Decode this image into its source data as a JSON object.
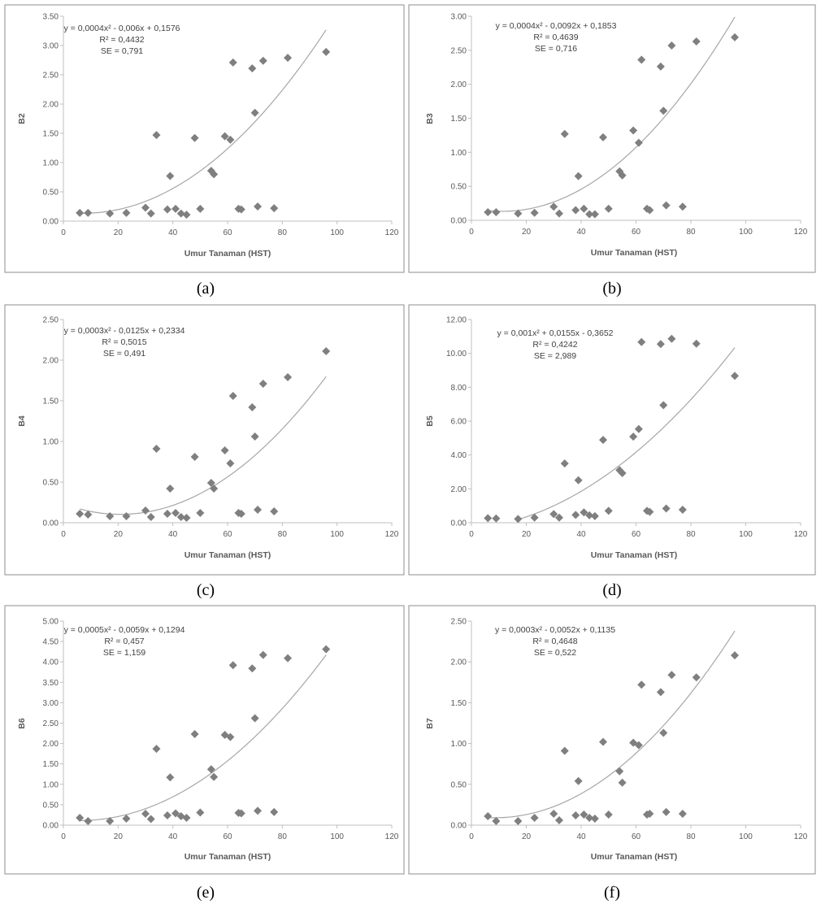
{
  "chart_data": [
    {
      "type": "scatter",
      "panel": "(a)",
      "xlabel": "Umur Tanaman (HST)",
      "ylabel": "B2",
      "xlim": [
        0,
        120
      ],
      "ylim": [
        0,
        3.5
      ],
      "x_ticks": [
        "0",
        "20",
        "40",
        "60",
        "80",
        "100",
        "120"
      ],
      "y_ticks": [
        "0.00",
        "0.50",
        "1.00",
        "1.50",
        "2.00",
        "2.50",
        "3.00",
        "3.50"
      ],
      "equation": "y = 0,0004x² - 0,006x + 0,1576",
      "r2": "R² = 0,4432",
      "se": "SE = 0,791",
      "trend": {
        "a": 0.0004,
        "b": -0.006,
        "c": 0.1576,
        "x_range": [
          6,
          96
        ]
      },
      "points": [
        [
          6,
          0.14
        ],
        [
          9,
          0.14
        ],
        [
          17,
          0.13
        ],
        [
          23,
          0.14
        ],
        [
          30,
          0.23
        ],
        [
          32,
          0.13
        ],
        [
          34,
          1.47
        ],
        [
          38,
          0.2
        ],
        [
          39,
          0.77
        ],
        [
          41,
          0.21
        ],
        [
          43,
          0.13
        ],
        [
          45,
          0.11
        ],
        [
          48,
          1.42
        ],
        [
          50,
          0.21
        ],
        [
          54,
          0.86
        ],
        [
          55,
          0.8
        ],
        [
          59,
          1.45
        ],
        [
          61,
          1.39
        ],
        [
          62,
          2.71
        ],
        [
          64,
          0.21
        ],
        [
          65,
          0.2
        ],
        [
          69,
          2.61
        ],
        [
          70,
          1.85
        ],
        [
          71,
          0.25
        ],
        [
          73,
          2.74
        ],
        [
          77,
          0.22
        ],
        [
          82,
          2.79
        ],
        [
          96,
          2.89
        ]
      ],
      "grid": false,
      "legend": "none"
    },
    {
      "type": "scatter",
      "panel": "(b)",
      "xlabel": "Umur Tanaman (HST)",
      "ylabel": "B3",
      "xlim": [
        0,
        120
      ],
      "ylim": [
        0,
        3.0
      ],
      "x_ticks": [
        "0",
        "20",
        "40",
        "60",
        "80",
        "100",
        "120"
      ],
      "y_ticks": [
        "0.00",
        "0.50",
        "1.00",
        "1.50",
        "2.00",
        "2.50",
        "3.00"
      ],
      "equation": "y = 0,0004x² - 0,0092x + 0,1853",
      "r2": "R² = 0,4639",
      "se": "SE = 0,716",
      "trend": {
        "a": 0.0004,
        "b": -0.0092,
        "c": 0.1853,
        "x_range": [
          6,
          96
        ]
      },
      "points": [
        [
          6,
          0.12
        ],
        [
          9,
          0.12
        ],
        [
          17,
          0.1
        ],
        [
          23,
          0.11
        ],
        [
          30,
          0.2
        ],
        [
          32,
          0.1
        ],
        [
          34,
          1.27
        ],
        [
          38,
          0.15
        ],
        [
          39,
          0.65
        ],
        [
          41,
          0.17
        ],
        [
          43,
          0.09
        ],
        [
          45,
          0.09
        ],
        [
          48,
          1.22
        ],
        [
          50,
          0.17
        ],
        [
          54,
          0.72
        ],
        [
          55,
          0.66
        ],
        [
          59,
          1.32
        ],
        [
          61,
          1.14
        ],
        [
          62,
          2.36
        ],
        [
          64,
          0.17
        ],
        [
          65,
          0.15
        ],
        [
          69,
          2.26
        ],
        [
          70,
          1.61
        ],
        [
          71,
          0.22
        ],
        [
          73,
          2.57
        ],
        [
          77,
          0.2
        ],
        [
          82,
          2.63
        ],
        [
          96,
          2.69
        ]
      ],
      "grid": false,
      "legend": "none"
    },
    {
      "type": "scatter",
      "panel": "(c)",
      "xlabel": "Umur Tanaman (HST)",
      "ylabel": "B4",
      "xlim": [
        0,
        120
      ],
      "ylim": [
        0,
        2.5
      ],
      "x_ticks": [
        "0",
        "20",
        "40",
        "60",
        "80",
        "100",
        "120"
      ],
      "y_ticks": [
        "0.00",
        "0.50",
        "1.00",
        "1.50",
        "2.00",
        "2.50"
      ],
      "equation": "y = 0,0003x² - 0,0125x + 0,2334",
      "r2": "R² = 0,5015",
      "se": "SE = 0,491",
      "trend": {
        "a": 0.0003,
        "b": -0.0125,
        "c": 0.2334,
        "x_range": [
          6,
          96
        ]
      },
      "points": [
        [
          6,
          0.11
        ],
        [
          9,
          0.1
        ],
        [
          17,
          0.08
        ],
        [
          23,
          0.08
        ],
        [
          30,
          0.15
        ],
        [
          32,
          0.07
        ],
        [
          34,
          0.91
        ],
        [
          38,
          0.11
        ],
        [
          39,
          0.42
        ],
        [
          41,
          0.12
        ],
        [
          43,
          0.07
        ],
        [
          45,
          0.06
        ],
        [
          48,
          0.81
        ],
        [
          50,
          0.12
        ],
        [
          54,
          0.49
        ],
        [
          55,
          0.42
        ],
        [
          59,
          0.89
        ],
        [
          61,
          0.73
        ],
        [
          62,
          1.56
        ],
        [
          64,
          0.12
        ],
        [
          65,
          0.11
        ],
        [
          69,
          1.42
        ],
        [
          70,
          1.06
        ],
        [
          71,
          0.16
        ],
        [
          73,
          1.71
        ],
        [
          77,
          0.14
        ],
        [
          82,
          1.79
        ],
        [
          96,
          2.11
        ]
      ],
      "grid": false,
      "legend": "none"
    },
    {
      "type": "scatter",
      "panel": "(d)",
      "xlabel": "Umur Tanaman (HST)",
      "ylabel": "B5",
      "xlim": [
        0,
        120
      ],
      "ylim": [
        0,
        12
      ],
      "x_ticks": [
        "0",
        "20",
        "40",
        "60",
        "80",
        "100",
        "120"
      ],
      "y_ticks": [
        "0.00",
        "2.00",
        "4.00",
        "6.00",
        "8.00",
        "10.00",
        "12.00"
      ],
      "equation": "y = 0,001x² + 0,0155x - 0,3652",
      "r2": "R² = 0,4242",
      "se": "SE = 2,989",
      "trend": {
        "a": 0.001,
        "b": 0.0155,
        "c": -0.3652,
        "x_range": [
          17,
          96
        ]
      },
      "points": [
        [
          6,
          0.27
        ],
        [
          9,
          0.25
        ],
        [
          17,
          0.22
        ],
        [
          23,
          0.3
        ],
        [
          30,
          0.51
        ],
        [
          32,
          0.3
        ],
        [
          34,
          3.5
        ],
        [
          38,
          0.46
        ],
        [
          39,
          2.51
        ],
        [
          41,
          0.61
        ],
        [
          43,
          0.44
        ],
        [
          45,
          0.39
        ],
        [
          48,
          4.89
        ],
        [
          50,
          0.7
        ],
        [
          54,
          3.1
        ],
        [
          55,
          2.93
        ],
        [
          59,
          5.08
        ],
        [
          61,
          5.53
        ],
        [
          62,
          10.67
        ],
        [
          64,
          0.7
        ],
        [
          65,
          0.64
        ],
        [
          69,
          10.55
        ],
        [
          70,
          6.94
        ],
        [
          71,
          0.84
        ],
        [
          73,
          10.86
        ],
        [
          77,
          0.77
        ],
        [
          82,
          10.57
        ],
        [
          96,
          8.67
        ]
      ],
      "grid": false,
      "legend": "none"
    },
    {
      "type": "scatter",
      "panel": "(e)",
      "xlabel": "Umur Tanaman (HST)",
      "ylabel": "B6",
      "xlim": [
        0,
        120
      ],
      "ylim": [
        0,
        5.0
      ],
      "x_ticks": [
        "0",
        "20",
        "40",
        "60",
        "80",
        "100",
        "120"
      ],
      "y_ticks": [
        "0.00",
        "0.50",
        "1.00",
        "1.50",
        "2.00",
        "2.50",
        "3.00",
        "3.50",
        "4.00",
        "4.50",
        "5.00"
      ],
      "equation": "y = 0,0005x² - 0,0059x + 0,1294",
      "r2": "R² = 0,457",
      "se": "SE = 1,159",
      "trend": {
        "a": 0.0005,
        "b": -0.0059,
        "c": 0.1294,
        "x_range": [
          6,
          96
        ]
      },
      "points": [
        [
          6,
          0.18
        ],
        [
          9,
          0.1
        ],
        [
          17,
          0.1
        ],
        [
          23,
          0.16
        ],
        [
          30,
          0.28
        ],
        [
          32,
          0.15
        ],
        [
          34,
          1.87
        ],
        [
          38,
          0.24
        ],
        [
          39,
          1.17
        ],
        [
          41,
          0.29
        ],
        [
          43,
          0.22
        ],
        [
          45,
          0.18
        ],
        [
          48,
          2.23
        ],
        [
          50,
          0.31
        ],
        [
          54,
          1.37
        ],
        [
          55,
          1.18
        ],
        [
          59,
          2.21
        ],
        [
          61,
          2.16
        ],
        [
          62,
          3.92
        ],
        [
          64,
          0.3
        ],
        [
          65,
          0.29
        ],
        [
          69,
          3.84
        ],
        [
          70,
          2.62
        ],
        [
          71,
          0.35
        ],
        [
          73,
          4.17
        ],
        [
          77,
          0.32
        ],
        [
          82,
          4.09
        ],
        [
          96,
          4.31
        ]
      ],
      "grid": false,
      "legend": "none"
    },
    {
      "type": "scatter",
      "panel": "(f)",
      "xlabel": "Umur Tanaman (HST)",
      "ylabel": "B7",
      "xlim": [
        0,
        120
      ],
      "ylim": [
        0,
        2.5
      ],
      "x_ticks": [
        "0",
        "20",
        "40",
        "60",
        "80",
        "100",
        "120"
      ],
      "y_ticks": [
        "0.00",
        "0.50",
        "1.00",
        "1.50",
        "2.00",
        "2.50"
      ],
      "equation": "y = 0,0003x² - 0,0052x + 0,1135",
      "r2": "R² = 0,4648",
      "se": "SE = 0,522",
      "trend": {
        "a": 0.0003,
        "b": -0.0052,
        "c": 0.1135,
        "x_range": [
          6,
          96
        ]
      },
      "points": [
        [
          6,
          0.11
        ],
        [
          9,
          0.05
        ],
        [
          17,
          0.05
        ],
        [
          23,
          0.09
        ],
        [
          30,
          0.14
        ],
        [
          32,
          0.06
        ],
        [
          34,
          0.91
        ],
        [
          38,
          0.12
        ],
        [
          39,
          0.54
        ],
        [
          41,
          0.13
        ],
        [
          43,
          0.09
        ],
        [
          45,
          0.08
        ],
        [
          48,
          1.02
        ],
        [
          50,
          0.13
        ],
        [
          54,
          0.66
        ],
        [
          55,
          0.52
        ],
        [
          59,
          1.01
        ],
        [
          61,
          0.98
        ],
        [
          62,
          1.72
        ],
        [
          64,
          0.13
        ],
        [
          65,
          0.14
        ],
        [
          69,
          1.63
        ],
        [
          70,
          1.13
        ],
        [
          71,
          0.16
        ],
        [
          73,
          1.84
        ],
        [
          77,
          0.14
        ],
        [
          82,
          1.81
        ],
        [
          96,
          2.08
        ]
      ],
      "grid": false,
      "legend": "none"
    }
  ],
  "colors": {
    "marker": "#7f7f7f",
    "trendline": "#a6a6a6",
    "axis": "#bfbfbf",
    "tick_text": "#595959",
    "panel_border": "#8c8c8c"
  }
}
